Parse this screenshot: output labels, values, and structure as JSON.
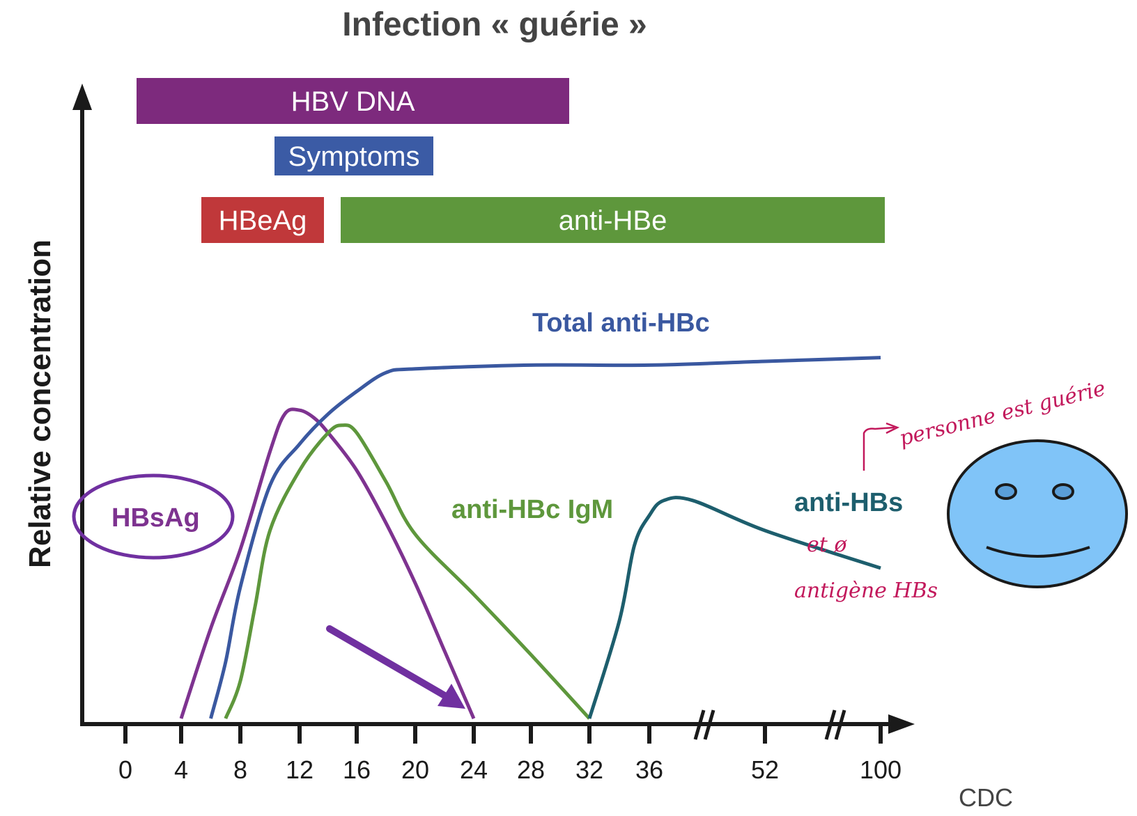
{
  "title": "Infection « guérie »",
  "source": "CDC",
  "chart_data": {
    "type": "line",
    "ylabel": "Relative concentration",
    "xlabel": "",
    "x_ticks": [
      0,
      4,
      8,
      12,
      16,
      20,
      24,
      28,
      32,
      36,
      52,
      100
    ],
    "axis_breaks_between": [
      [
        36,
        52
      ],
      [
        52,
        100
      ]
    ],
    "bands": [
      {
        "name": "HBV DNA",
        "start": 1,
        "end": 30,
        "color": "#7d2a7d"
      },
      {
        "name": "Symptoms",
        "start": 10,
        "end": 21,
        "color": "#3b5ba5"
      },
      {
        "name": "HBeAg",
        "start": 5,
        "end": 13,
        "color": "#c0383a"
      },
      {
        "name": "anti-HBe",
        "start": 15,
        "end": 100,
        "color": "#5e973c"
      }
    ],
    "series": [
      {
        "name": "HBsAg",
        "color": "#7e3390",
        "x": [
          4,
          6,
          8,
          10,
          11,
          12,
          13,
          14,
          16,
          18,
          20,
          22,
          24
        ],
        "y": [
          0,
          0.24,
          0.45,
          0.71,
          0.81,
          0.82,
          0.8,
          0.76,
          0.66,
          0.52,
          0.36,
          0.18,
          0
        ]
      },
      {
        "name": "Total anti-HBc",
        "color": "#3a58a0",
        "x": [
          6,
          7,
          8,
          10,
          12,
          14,
          16,
          18,
          20,
          28,
          36,
          52,
          100
        ],
        "y": [
          0,
          0.15,
          0.35,
          0.62,
          0.73,
          0.81,
          0.87,
          0.92,
          0.93,
          0.94,
          0.94,
          0.95,
          0.96
        ]
      },
      {
        "name": "anti-HBc IgM",
        "color": "#5e973c",
        "x": [
          7,
          8,
          9,
          10,
          12,
          14,
          15,
          16,
          18,
          20,
          24,
          28,
          32
        ],
        "y": [
          0,
          0.1,
          0.3,
          0.5,
          0.66,
          0.76,
          0.78,
          0.76,
          0.63,
          0.49,
          0.33,
          0.17,
          0
        ]
      },
      {
        "name": "anti-HBs",
        "color": "#1d5e6d",
        "x": [
          32,
          34,
          35,
          36,
          38,
          42,
          52,
          100
        ],
        "y": [
          0,
          0.26,
          0.46,
          0.54,
          0.58,
          0.58,
          0.5,
          0.4
        ]
      }
    ]
  },
  "annotations": {
    "note_1": "personne est guérie",
    "note_2": "et ø",
    "note_3": "antigène HBs"
  }
}
